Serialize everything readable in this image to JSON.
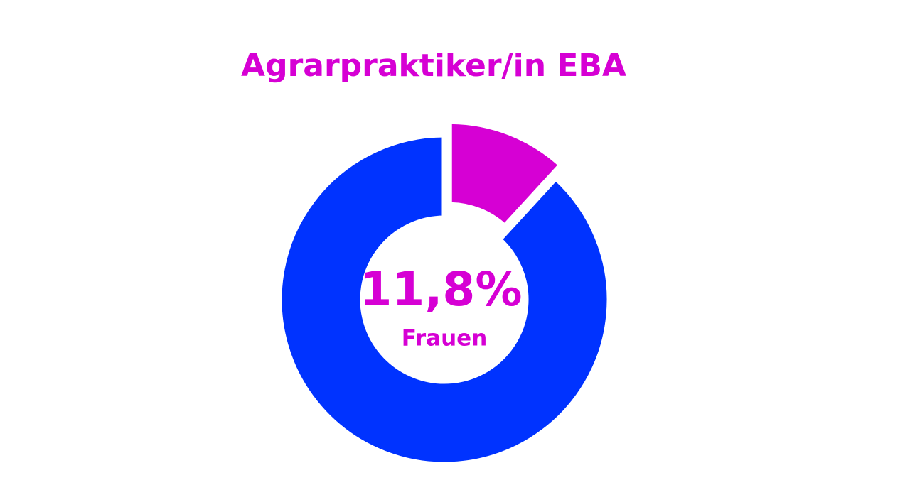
{
  "chart_data": {
    "type": "pie",
    "title": "Agrarpraktiker/in EBA",
    "categories": [
      "Frauen",
      null
    ],
    "values": [
      11.8,
      88.2
    ],
    "value_labels": [
      "11,8%",
      null
    ],
    "colors": [
      "#d600d4",
      "#0033ff"
    ],
    "donut": true,
    "exploded": [
      true,
      false
    ]
  }
}
